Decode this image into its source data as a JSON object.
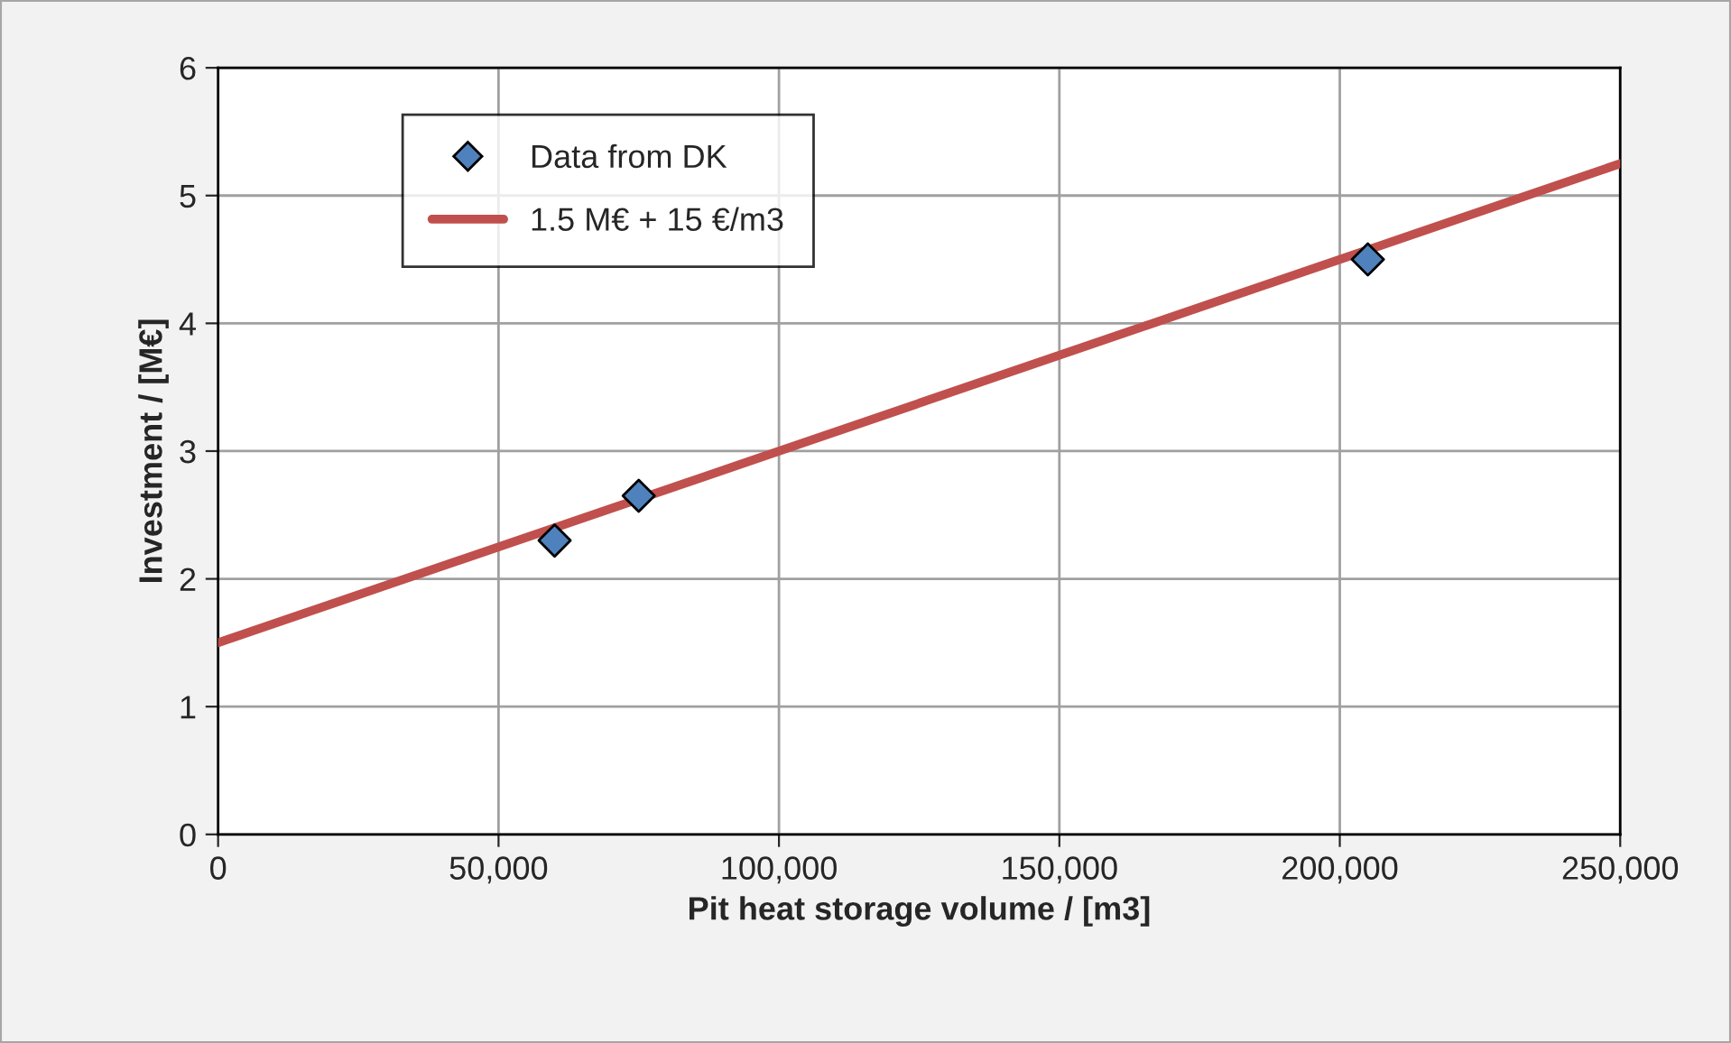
{
  "chart_data": {
    "type": "scatter",
    "xlabel": "Pit heat storage volume / [m3]",
    "ylabel": "Investment / [M€]",
    "series": [
      {
        "name": "Data from DK",
        "color": "#4f81bd",
        "marker": "diamond",
        "x": [
          60000,
          75000,
          205000
        ],
        "values": [
          2.3,
          2.65,
          4.5
        ]
      },
      {
        "name": "1.5 M€ + 15 €/m3",
        "type": "line",
        "color": "#c0504d",
        "marker": "none",
        "line_style": "solid",
        "x": [
          0,
          250000
        ],
        "values": [
          1.5,
          5.25
        ]
      }
    ],
    "xlim": [
      0,
      250000
    ],
    "xticks": [
      0,
      {
        "value": 50000,
        "label": "50,000"
      },
      {
        "value": 100000,
        "label": "100,000"
      },
      {
        "value": 150000,
        "label": "150,000"
      },
      {
        "value": 200000,
        "label": "200,000"
      },
      {
        "value": 250000,
        "label": "250,000"
      }
    ],
    "ylim": [
      0,
      6
    ],
    "yticks": [
      0,
      1,
      2,
      3,
      4,
      5,
      6
    ],
    "grid": true,
    "legend": "top left"
  }
}
